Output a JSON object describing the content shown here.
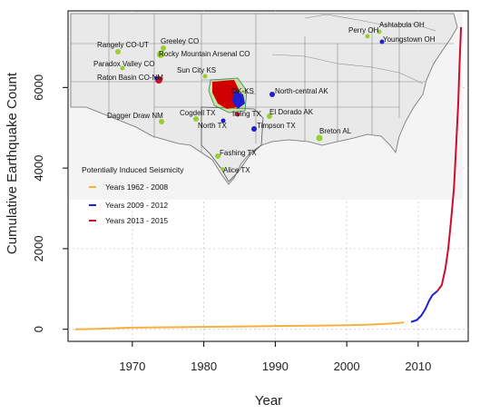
{
  "chart_data": {
    "type": "line",
    "xlabel": "Year",
    "ylabel": "Cumulative Earthquake Count",
    "xlim": [
      1961,
      2017
    ],
    "ylim": [
      -300,
      7900
    ],
    "xticks": [
      1970,
      1980,
      1990,
      2000,
      2010
    ],
    "yticks": [
      0,
      2000,
      4000,
      6000
    ],
    "grid": true,
    "legend_position": "left, over inset map",
    "legend_title": "Potentially Induced Seismicity",
    "series": [
      {
        "name": "Years 1962 - 2008",
        "color": "#f5b041",
        "points": [
          [
            1962,
            0
          ],
          [
            1965,
            10
          ],
          [
            1970,
            40
          ],
          [
            1975,
            50
          ],
          [
            1980,
            60
          ],
          [
            1985,
            70
          ],
          [
            1990,
            80
          ],
          [
            1995,
            90
          ],
          [
            2000,
            100
          ],
          [
            2003,
            115
          ],
          [
            2005,
            130
          ],
          [
            2007,
            150
          ],
          [
            2008,
            170
          ]
        ]
      },
      {
        "name": "Years 2009 - 2012",
        "color": "#1f1fd0",
        "points": [
          [
            2009,
            180
          ],
          [
            2009.8,
            230
          ],
          [
            2010.4,
            330
          ],
          [
            2011,
            500
          ],
          [
            2011.5,
            700
          ],
          [
            2012,
            850
          ],
          [
            2012.7,
            950
          ]
        ]
      },
      {
        "name": "Years 2013 - 2015",
        "color": "#c8102e",
        "points": [
          [
            2012.7,
            950
          ],
          [
            2013.3,
            1100
          ],
          [
            2013.8,
            1500
          ],
          [
            2014.2,
            2000
          ],
          [
            2014.6,
            2700
          ],
          [
            2015,
            3500
          ],
          [
            2015.3,
            4500
          ],
          [
            2015.6,
            5600
          ],
          [
            2015.8,
            6600
          ],
          [
            2016,
            7500
          ]
        ]
      }
    ],
    "map_labels": [
      "Rangely CO-UT",
      "Greeley CO",
      "Rocky Mountain Arsenal CO",
      "Paradox Valley CO",
      "Raton Basin CO-NM",
      "Sun City KS",
      "Dagger Draw NM",
      "Cogdell TX",
      "North TX",
      "Irving TX",
      "OK-KS",
      "North-central AK",
      "El Dorado AK",
      "Timpson TX",
      "Fashing TX",
      "Alice TX",
      "Breton AL",
      "Perry OH",
      "Ashtabula OH",
      "Youngstown OH"
    ]
  }
}
